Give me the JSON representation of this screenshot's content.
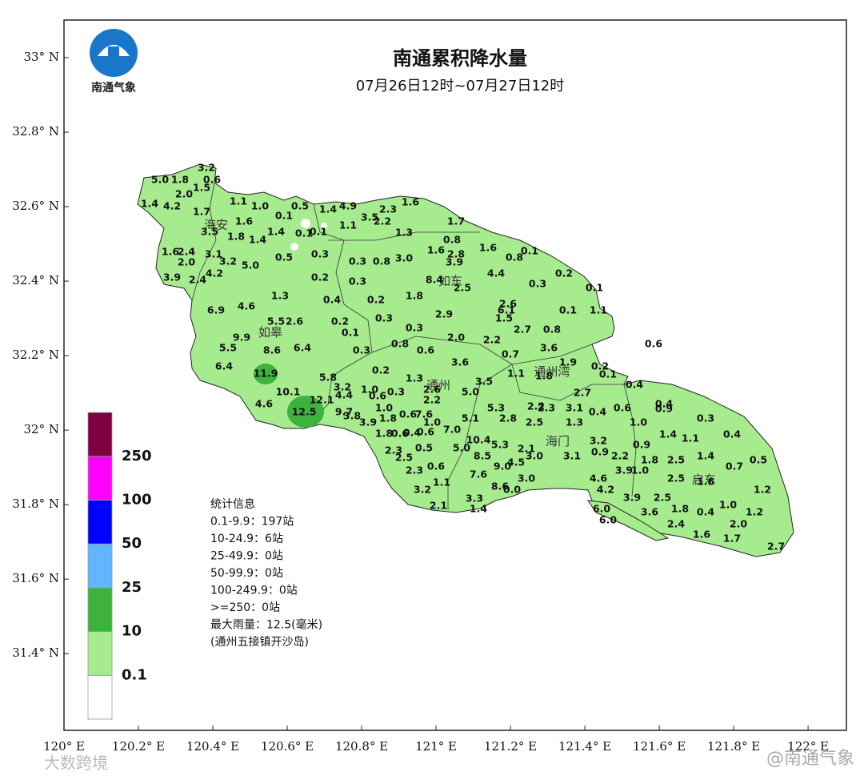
{
  "header": {
    "title": "南通累积降水量",
    "subtitle": "07月26日12时~07月27日12时",
    "logo_text": "南通气象"
  },
  "axes": {
    "xlim": [
      120,
      122.103
    ],
    "ylim": [
      31.194,
      33.101
    ],
    "xticks": [
      {
        "value": 120,
        "label": "120° E"
      },
      {
        "value": 120.2,
        "label": "120.2° E"
      },
      {
        "value": 120.4,
        "label": "120.4° E"
      },
      {
        "value": 120.6,
        "label": "120.6° E"
      },
      {
        "value": 120.8,
        "label": "120.8° E"
      },
      {
        "value": 121,
        "label": "121° E"
      },
      {
        "value": 121.2,
        "label": "121.2° E"
      },
      {
        "value": 121.4,
        "label": "121.4° E"
      },
      {
        "value": 121.6,
        "label": "121.6° E"
      },
      {
        "value": 121.8,
        "label": "121.8° E"
      },
      {
        "value": 122,
        "label": "122° E"
      }
    ],
    "yticks": [
      {
        "value": 31.4,
        "label": "31.4° N"
      },
      {
        "value": 31.6,
        "label": "31.6° N"
      },
      {
        "value": 31.8,
        "label": "31.8° N"
      },
      {
        "value": 32,
        "label": "32° N"
      },
      {
        "value": 32.2,
        "label": "32.2° N"
      },
      {
        "value": 32.4,
        "label": "32.4° N"
      },
      {
        "value": 32.6,
        "label": "32.6° N"
      },
      {
        "value": 32.8,
        "label": "32.8° N"
      },
      {
        "value": 33,
        "label": "33° N"
      }
    ]
  },
  "places": [
    "海安",
    "如皋",
    "如东",
    "通州",
    "通州湾",
    "海门",
    "启东"
  ],
  "stations": [
    "5.0",
    "1.8",
    "3.2",
    "0.6",
    "1.4",
    "4.2",
    "2.0",
    "1.5",
    "1.7",
    "1.1",
    "1.0",
    "1.6",
    "3.5",
    "1.8",
    "1.4",
    "1.4",
    "0.1",
    "0.5",
    "0.1",
    "0.1",
    "4.9",
    "1.4",
    "1.1",
    "3.5",
    "2.2",
    "2.3",
    "1.6",
    "1.7",
    "1.3",
    "1.6",
    "2.4",
    "2.0",
    "3.1",
    "3.2",
    "5.0",
    "0.5",
    "0.3",
    "3.9",
    "2.4",
    "4.2",
    "0.2",
    "0.3",
    "0.8",
    "3.0",
    "0.8",
    "1.6",
    "2.8",
    "3.9",
    "1.6",
    "0.1",
    "0.8",
    "4.4",
    "8.4",
    "2.5",
    "0.3",
    "0.3",
    "0.2",
    "0.1",
    "6.9",
    "4.6",
    "1.3",
    "0.4",
    "0.2",
    "1.8",
    "2.6",
    "6.1",
    "1.5",
    "0.1",
    "1.1",
    "5.5",
    "2.6",
    "9.9",
    "0.2",
    "0.1",
    "0.3",
    "0.3",
    "2.9",
    "2.7",
    "0.8",
    "5.5",
    "8.6",
    "6.4",
    "0.3",
    "0.8",
    "0.6",
    "2.0",
    "2.2",
    "3.6",
    "0.7",
    "0.6",
    "6.4",
    "11.9",
    "5.8",
    "0.2",
    "1.3",
    "3.6",
    "1.1",
    "3.5",
    "1.9",
    "1.8",
    "0.2",
    "0.1",
    "0.4",
    "10.1",
    "12.1",
    "4.4",
    "3.2",
    "1.0",
    "0.6",
    "0.3",
    "2.6",
    "2.2",
    "5.0",
    "2.7",
    "4.6",
    "12.5",
    "9.7",
    "3.8",
    "3.9",
    "1.0",
    "1.8",
    "0.6",
    "7.6",
    "1.0",
    "5.1",
    "5.3",
    "2.8",
    "2.2",
    "2.3",
    "2.5",
    "3.1",
    "1.3",
    "0.4",
    "0.6",
    "0.4",
    "0.9",
    "0.3",
    "1.0",
    "1.4",
    "1.1",
    "0.4",
    "1.8",
    "0.6",
    "0.4",
    "0.6",
    "7.0",
    "10.4",
    "5.3",
    "2.3",
    "0.5",
    "5.0",
    "8.5",
    "2.1",
    "3.0",
    "3.1",
    "3.2",
    "0.9",
    "2.2",
    "0.9",
    "1.8",
    "2.5",
    "1.4",
    "2.5",
    "2.3",
    "0.6",
    "1.1",
    "7.6",
    "9.0",
    "4.5",
    "3.0",
    "3.9",
    "1.0",
    "2.5",
    "1.6",
    "0.7",
    "0.5",
    "4.6",
    "4.2",
    "3.2",
    "8.6",
    "0.0",
    "3.9",
    "2.5",
    "1.2",
    "2.1",
    "3.3",
    "1.4",
    "6.0",
    "3.6",
    "1.8",
    "0.4",
    "1.0",
    "1.2",
    "6.0",
    "2.4",
    "2.0",
    "1.6",
    "1.7",
    "2.7"
  ],
  "legend": {
    "colors": [
      "#ffffff",
      "#a6ec8e",
      "#3db23d",
      "#61b6ff",
      "#0000fe",
      "#fe00fe",
      "#7f0040"
    ],
    "labels": [
      0.1,
      10,
      25,
      50,
      100,
      250
    ]
  },
  "stats": [
    "统计信息",
    "0.1-9.9：197站",
    "10-24.9：6站",
    "25-49.9：0站",
    "50-99.9：0站",
    "100-249.9：0站",
    ">=250：0站",
    "最大雨量：12.5(毫米)",
    "(通州五接镇开沙岛)"
  ],
  "watermarks": [
    "大数跨境",
    "@南通气象"
  ]
}
